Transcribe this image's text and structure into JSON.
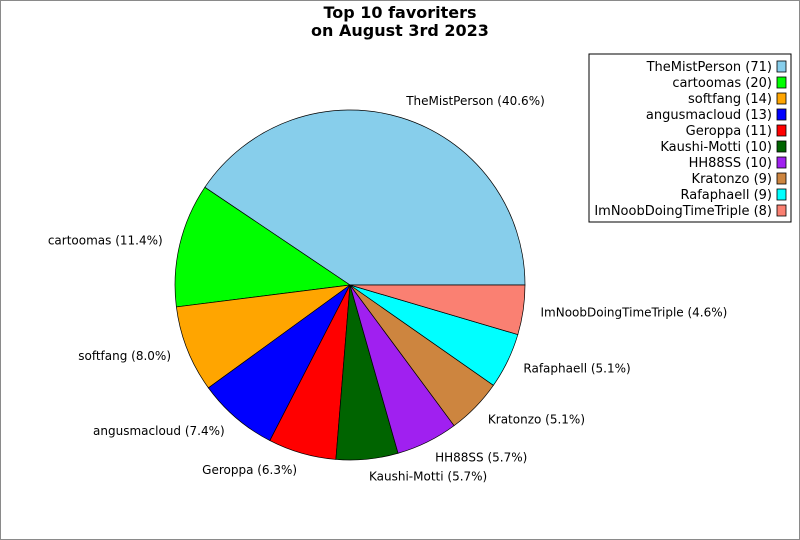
{
  "chart_data": {
    "type": "pie",
    "title": [
      "Top 10 favoriters",
      "on August 3rd 2023"
    ],
    "slices": [
      {
        "label": "TheMistPerson",
        "value": 71,
        "percent": "40.6%",
        "color": "#87ceeb"
      },
      {
        "label": "cartoomas",
        "value": 20,
        "percent": "11.4%",
        "color": "#00ff00"
      },
      {
        "label": "softfang",
        "value": 14,
        "percent": "8.0%",
        "color": "#ffa500"
      },
      {
        "label": "angusmacloud",
        "value": 13,
        "percent": "7.4%",
        "color": "#0000ff"
      },
      {
        "label": "Geroppa",
        "value": 11,
        "percent": "6.3%",
        "color": "#ff0000"
      },
      {
        "label": "Kaushi-Motti",
        "value": 10,
        "percent": "5.7%",
        "color": "#006400"
      },
      {
        "label": "HH88SS",
        "value": 10,
        "percent": "5.7%",
        "color": "#a020f0"
      },
      {
        "label": "Kratonzo",
        "value": 9,
        "percent": "5.1%",
        "color": "#cd853f"
      },
      {
        "label": "Rafaphaell",
        "value": 9,
        "percent": "5.1%",
        "color": "#00ffff"
      },
      {
        "label": "ImNoobDoingTimeTriple",
        "value": 8,
        "percent": "4.6%",
        "color": "#fa8072"
      }
    ],
    "legend": {
      "placement": "top-right",
      "entries": [
        "TheMistPerson (71)",
        "cartoomas (20)",
        "softfang (14)",
        "angusmacloud (13)",
        "Geroppa (11)",
        "Kaushi-Motti (10)",
        "HH88SS (10)",
        "Kratonzo (9)",
        "Rafaphaell (9)",
        "ImNoobDoingTimeTriple (8)"
      ]
    }
  }
}
